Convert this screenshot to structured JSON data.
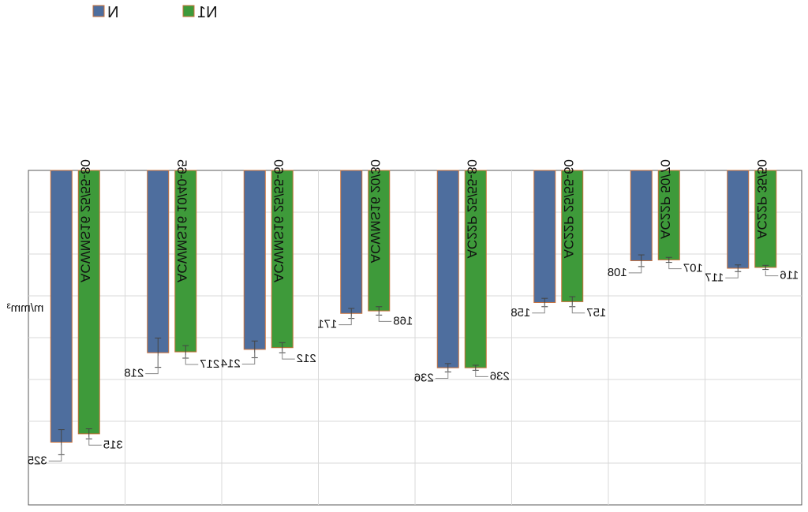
{
  "chart_data": {
    "type": "bar",
    "orientation": "mirrored-vertical",
    "ylabel": "m/mm³",
    "ylim": [
      0,
      400
    ],
    "grid": true,
    "legend_position": "top-left",
    "categories": [
      "ACWMS16 25/55-80",
      "ACWMS16 10/40-65",
      "ACWMS16 25/55-60",
      "ACWMS16 20/30",
      "AC22P 25/55-80",
      "AC22P 25/55-60",
      "AC22P 50/70",
      "AC22P 35/50"
    ],
    "series": [
      {
        "name": "N",
        "color": "#4E6E9E",
        "values": [
          325,
          218,
          214,
          171,
          236,
          158,
          108,
          117
        ],
        "errors": [
          30,
          35,
          20,
          12,
          10,
          10,
          14,
          8
        ]
      },
      {
        "name": "N1",
        "color": "#3E9A3A",
        "values": [
          315,
          217,
          212,
          168,
          236,
          157,
          107,
          116
        ],
        "errors": [
          12,
          15,
          12,
          10,
          6,
          12,
          6,
          5
        ]
      }
    ],
    "data_labels": {
      "N": [
        "325",
        "218",
        "214",
        "171",
        "236",
        "158",
        "108",
        "117"
      ],
      "N1": [
        "315",
        "217",
        "212",
        "168",
        "236",
        "157",
        "107",
        "116"
      ]
    }
  },
  "colors": {
    "bar_stroke": "#C8703A",
    "grid": "#d9d9d9",
    "axis": "#595959"
  }
}
